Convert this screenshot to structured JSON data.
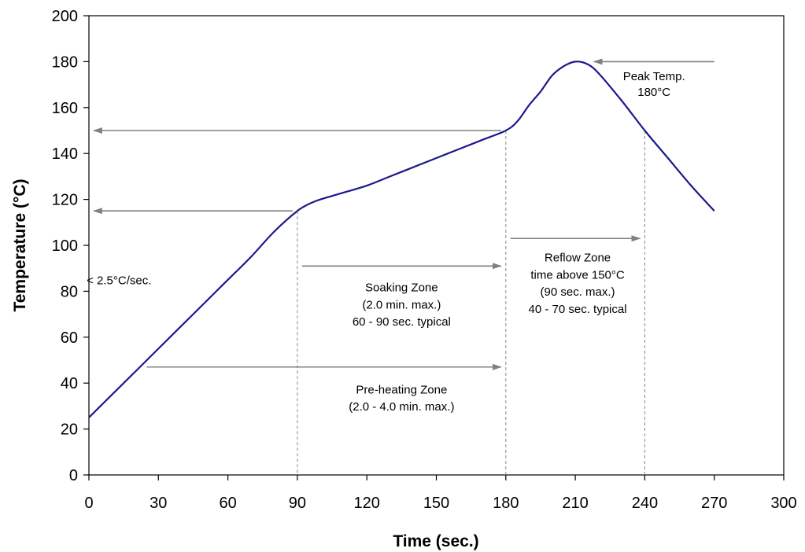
{
  "chart_data": {
    "type": "line",
    "title": "",
    "xlabel": "Time (sec.)",
    "ylabel": "Temperature (°C)",
    "xlim": [
      0,
      300
    ],
    "ylim": [
      0,
      200
    ],
    "x_ticks": [
      0,
      30,
      60,
      90,
      120,
      150,
      180,
      210,
      240,
      270,
      300
    ],
    "y_ticks": [
      0,
      20,
      40,
      60,
      80,
      100,
      120,
      140,
      160,
      180,
      200
    ],
    "grid": false,
    "legend": "none",
    "line_color": "#1a1a8c",
    "series": [
      {
        "x": [
          0,
          10,
          20,
          30,
          40,
          50,
          60,
          70,
          80,
          90,
          95,
          100,
          110,
          120,
          130,
          140,
          150,
          160,
          170,
          180,
          185,
          190,
          195,
          200,
          205,
          210,
          215,
          220,
          230,
          240,
          250,
          260,
          270
        ],
        "values": [
          25,
          35,
          45,
          55,
          65,
          75,
          85,
          95,
          106,
          115,
          118,
          120,
          123,
          126,
          130,
          134,
          138,
          142,
          146,
          150,
          154,
          161,
          167,
          174,
          178,
          180,
          179,
          175,
          163,
          150,
          138,
          126,
          115
        ]
      }
    ],
    "annotations": [
      {
        "text": "Peak Temp.",
        "x": 244,
        "y": 172
      },
      {
        "text": "180°C",
        "x": 244,
        "y": 165
      },
      {
        "text": "< 2.5°C/sec.",
        "x": 13,
        "y": 83
      },
      {
        "text": "Soaking Zone",
        "x": 135,
        "y": 80
      },
      {
        "text": "(2.0 min.  max.)",
        "x": 135,
        "y": 72.5
      },
      {
        "text": "60 - 90 sec. typical",
        "x": 135,
        "y": 65
      },
      {
        "text": "Pre-heating Zone",
        "x": 135,
        "y": 35.5
      },
      {
        "text": "(2.0 - 4.0 min. max.)",
        "x": 135,
        "y": 28
      },
      {
        "text": "Reflow Zone",
        "x": 211,
        "y": 93
      },
      {
        "text": "time above 150°C",
        "x": 211,
        "y": 85.5
      },
      {
        "text": "(90 sec. max.)",
        "x": 211,
        "y": 78
      },
      {
        "text": "40 - 70 sec. typical",
        "x": 211,
        "y": 70.5
      }
    ],
    "arrows": [
      {
        "from": [
          270,
          180
        ],
        "to": [
          218,
          180
        ]
      },
      {
        "from": [
          178,
          150
        ],
        "to": [
          2,
          150
        ]
      },
      {
        "from": [
          88,
          115
        ],
        "to": [
          2,
          115
        ]
      },
      {
        "from": [
          92,
          91
        ],
        "to": [
          178,
          91
        ]
      },
      {
        "from": [
          25,
          47
        ],
        "to": [
          178,
          47
        ]
      },
      {
        "from": [
          182,
          103
        ],
        "to": [
          238,
          103
        ]
      }
    ],
    "vlines": [
      {
        "x": 90,
        "y_top": 115
      },
      {
        "x": 180,
        "y_top": 150
      },
      {
        "x": 240,
        "y_top": 150
      }
    ]
  }
}
